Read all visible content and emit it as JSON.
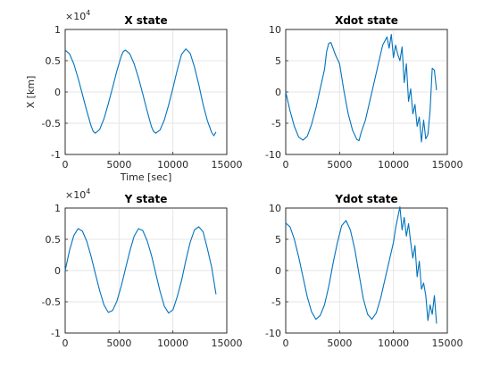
{
  "figure": {
    "background": "#ffffff",
    "series_color": "#0072bd"
  },
  "chart_data": [
    {
      "type": "line",
      "title": "X state",
      "xlabel": "Time [sec]",
      "ylabel": "X [km]",
      "xlim": [
        0,
        15000
      ],
      "ylim": [
        -10000,
        10000
      ],
      "xticks": [
        "0",
        "5000",
        "10000",
        "15000"
      ],
      "yticks": [
        "1",
        "0.5",
        "0",
        "-0.5",
        "-1"
      ],
      "y_exponent": "4",
      "grid": true,
      "series": [
        {
          "x": [
            0,
            400,
            800,
            1200,
            1600,
            2000,
            2400,
            2600,
            2800,
            3200,
            3600,
            4000,
            4400,
            4800,
            5200,
            5400,
            5600,
            6000,
            6400,
            6800,
            7200,
            7600,
            8000,
            8200,
            8400,
            8800,
            9200,
            9600,
            10000,
            10400,
            10800,
            11200,
            11600,
            12000,
            12400,
            12800,
            13200,
            13600,
            13800,
            14000
          ],
          "y": [
            6700,
            6100,
            4500,
            2200,
            -400,
            -3000,
            -5400,
            -6300,
            -6600,
            -6000,
            -4300,
            -1900,
            700,
            3400,
            5700,
            6500,
            6700,
            6100,
            4500,
            2300,
            -300,
            -3000,
            -5500,
            -6300,
            -6600,
            -6100,
            -4500,
            -2100,
            600,
            3500,
            6000,
            6900,
            6200,
            4000,
            1200,
            -2000,
            -4600,
            -6500,
            -7000,
            -6400
          ]
        }
      ]
    },
    {
      "type": "line",
      "title": "Xdot state",
      "xlabel": "",
      "ylabel": "",
      "xlim": [
        0,
        15000
      ],
      "ylim": [
        -10,
        10
      ],
      "xticks": [
        "0",
        "5000",
        "10000",
        "15000"
      ],
      "yticks": [
        "10",
        "5",
        "0",
        "-5",
        "-10"
      ],
      "grid": true,
      "series": [
        {
          "x": [
            0,
            400,
            800,
            1200,
            1600,
            2000,
            2400,
            2800,
            3200,
            3600,
            3800,
            4000,
            4200,
            4600,
            5000,
            5400,
            5800,
            6200,
            6600,
            6800,
            7000,
            7400,
            7800,
            8200,
            8600,
            9000,
            9400,
            9600,
            9800,
            10000,
            10200,
            10400,
            10600,
            10800,
            11000,
            11200,
            11400,
            11600,
            11800,
            12000,
            12200,
            12400,
            12600,
            12800,
            13000,
            13200,
            13400,
            13600,
            13800,
            14000
          ],
          "y": [
            0,
            -3,
            -5.5,
            -7.2,
            -7.7,
            -7.1,
            -5.2,
            -2.6,
            0.5,
            3.6,
            6.5,
            7.8,
            7.9,
            6,
            4.5,
            0.2,
            -3.5,
            -6.1,
            -7.6,
            -7.8,
            -6.5,
            -4.5,
            -1.5,
            1.5,
            4.5,
            7.5,
            8.8,
            7,
            9.2,
            5.5,
            7.5,
            6,
            5,
            7.2,
            1.5,
            4.5,
            -1.5,
            0.5,
            -3.5,
            -2,
            -5.5,
            -4,
            -8,
            -4.5,
            -7.5,
            -6.8,
            -3,
            3.8,
            3.5,
            0.3
          ]
        }
      ]
    },
    {
      "type": "line",
      "title": "Y state",
      "xlabel": "",
      "ylabel": "",
      "xlim": [
        0,
        15000
      ],
      "ylim": [
        -10000,
        10000
      ],
      "xticks": [
        "0",
        "5000",
        "10000",
        "15000"
      ],
      "yticks": [
        "1",
        "0.5",
        "0",
        "-0.5",
        "-1"
      ],
      "y_exponent": "4",
      "grid": true,
      "series": [
        {
          "x": [
            0,
            400,
            800,
            1200,
            1600,
            2000,
            2400,
            2800,
            3200,
            3600,
            4000,
            4400,
            4800,
            5200,
            5600,
            6000,
            6400,
            6800,
            7200,
            7600,
            8000,
            8400,
            8800,
            9200,
            9600,
            10000,
            10400,
            10800,
            11200,
            11600,
            12000,
            12400,
            12800,
            13200,
            13600,
            14000
          ],
          "y": [
            0,
            3200,
            5600,
            6700,
            6300,
            4700,
            2300,
            -500,
            -3200,
            -5500,
            -6700,
            -6400,
            -4900,
            -2500,
            300,
            3100,
            5500,
            6700,
            6400,
            4800,
            2500,
            -400,
            -3300,
            -5700,
            -6800,
            -6300,
            -4200,
            -1600,
            1600,
            4500,
            6500,
            7000,
            6200,
            3500,
            500,
            -3800
          ]
        }
      ]
    },
    {
      "type": "line",
      "title": "Ydot state",
      "xlabel": "",
      "ylabel": "",
      "xlim": [
        0,
        15000
      ],
      "ylim": [
        -10,
        10
      ],
      "xticks": [
        "0",
        "5000",
        "10000",
        "15000"
      ],
      "yticks": [
        "10",
        "5",
        "0",
        "-5",
        "-10"
      ],
      "grid": true,
      "series": [
        {
          "x": [
            0,
            400,
            800,
            1200,
            1600,
            2000,
            2400,
            2800,
            3200,
            3600,
            4000,
            4400,
            4800,
            5200,
            5600,
            6000,
            6400,
            6800,
            7200,
            7600,
            8000,
            8400,
            8800,
            9200,
            9600,
            10000,
            10200,
            10400,
            10600,
            10800,
            11000,
            11200,
            11400,
            11600,
            11800,
            12000,
            12200,
            12400,
            12600,
            12800,
            13000,
            13200,
            13400,
            13600,
            13800,
            14000
          ],
          "y": [
            7.6,
            7,
            5,
            2.2,
            -1,
            -4.2,
            -6.6,
            -7.8,
            -7.2,
            -5.5,
            -2.5,
            1.2,
            4.5,
            7.2,
            8,
            6.5,
            3.5,
            -0.5,
            -4.5,
            -7,
            -7.8,
            -6.8,
            -4.5,
            -1.5,
            1.5,
            4.5,
            6.8,
            8.5,
            10.2,
            6.5,
            8.5,
            5.5,
            7.5,
            4.5,
            2,
            4,
            -1,
            1.5,
            -3,
            -2,
            -4,
            -8,
            -5.5,
            -7,
            -4,
            -8.5
          ]
        }
      ]
    }
  ]
}
